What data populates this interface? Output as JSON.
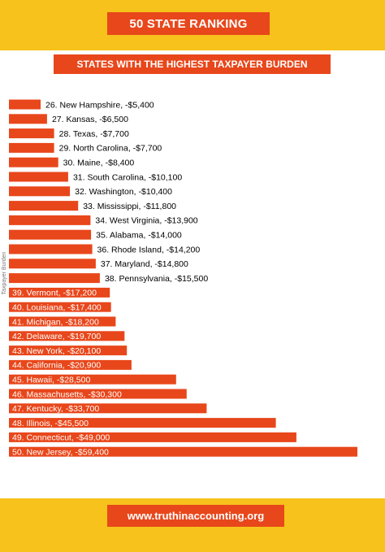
{
  "header": {
    "title": "50 STATE RANKING"
  },
  "chart_data": {
    "type": "bar",
    "orientation": "horizontal",
    "title": "STATES WITH THE HIGHEST TAXPAYER BURDEN",
    "ylabel": "Taxpayer Burden",
    "value_unit": "USD",
    "bar_color": "#e8471b",
    "label_color_outside": "#000000",
    "label_color_inside": "#ffffff",
    "labels": [
      "26. New Hampshire, -$5,400",
      "27. Kansas, -$6,500",
      "28. Texas, -$7,700",
      "29. North Carolina, -$7,700",
      "30. Maine, -$8,400",
      "31. South Carolina, -$10,100",
      "32. Washington, -$10,400",
      "33. Mississippi, -$11,800",
      "34. West Virginia, -$13,900",
      "35. Alabama, -$14,000",
      "36. Rhode Island, -$14,200",
      "37. Maryland, -$14,800",
      "38. Pennsylvania, -$15,500",
      "39. Vermont, -$17,200",
      "40. Louisiana, -$17,400",
      "41. Michigan, -$18,200",
      "42. Delaware, -$19,700",
      "43. New York, -$20,100",
      "44. California, -$20,900",
      "45. Hawaii, -$28,500",
      "46. Massachusetts, -$30,300",
      "47. Kentucky, -$33,700",
      "48. Illinois, -$45,500",
      "49. Connecticut, -$49,000",
      "50. New Jersey, -$59,400"
    ],
    "values": [
      5400,
      6500,
      7700,
      7700,
      8400,
      10100,
      10400,
      11800,
      13900,
      14000,
      14200,
      14800,
      15500,
      17200,
      17400,
      18200,
      19700,
      20100,
      20900,
      28500,
      30300,
      33700,
      45500,
      49000,
      59400
    ],
    "label_inside": [
      false,
      false,
      false,
      false,
      false,
      false,
      false,
      false,
      false,
      false,
      false,
      false,
      false,
      true,
      true,
      true,
      true,
      true,
      true,
      true,
      true,
      true,
      true,
      true,
      true
    ]
  },
  "footer": {
    "url": "www.truthinaccounting.org"
  }
}
